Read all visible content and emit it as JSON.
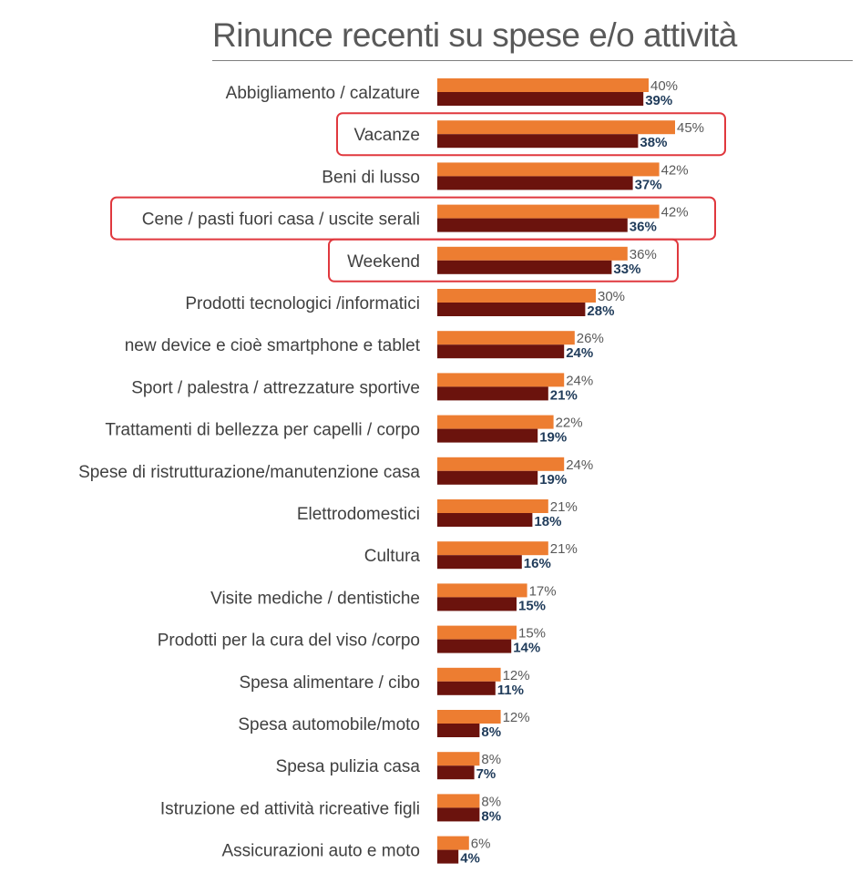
{
  "chart_data": {
    "type": "bar",
    "orientation": "horizontal",
    "title": "Rinunce recenti su spese e/o attività",
    "categories": [
      "Abbigliamento / calzature",
      "Vacanze",
      "Beni di lusso",
      "Cene / pasti fuori casa / uscite serali",
      "Weekend",
      "Prodotti tecnologici /informatici",
      "new device e cioè smartphone e tablet",
      "Sport / palestra / attrezzature sportive",
      "Trattamenti di bellezza per capelli / corpo",
      "Spese di ristrutturazione/manutenzione casa",
      "Elettrodomestici",
      "Cultura",
      "Visite mediche / dentistiche",
      "Prodotti per la cura del viso /corpo",
      "Spesa alimentare / cibo",
      "Spesa automobile/moto",
      "Spesa pulizia casa",
      "Istruzione ed attività ricreative figli",
      "Assicurazioni auto e moto"
    ],
    "series": [
      {
        "color": "#ed7d31",
        "values": [
          40,
          45,
          42,
          42,
          36,
          30,
          26,
          24,
          22,
          24,
          21,
          21,
          17,
          15,
          12,
          12,
          8,
          8,
          6
        ]
      },
      {
        "color": "#6b130d",
        "values": [
          39,
          38,
          37,
          36,
          33,
          28,
          24,
          21,
          19,
          19,
          18,
          16,
          15,
          14,
          11,
          8,
          7,
          8,
          4
        ]
      }
    ],
    "value_suffix": "%",
    "highlighted": [
      "Vacanze",
      "Cene / pasti fuori casa / uscite serali",
      "Weekend"
    ],
    "highlight_color": "#e0383e",
    "xlim": [
      0,
      100
    ],
    "grid": false,
    "legend": "none"
  }
}
